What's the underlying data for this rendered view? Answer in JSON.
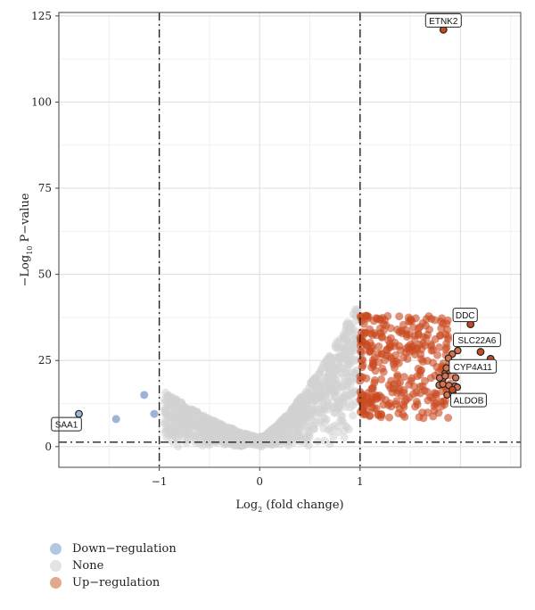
{
  "chart_data": {
    "type": "scatter",
    "title": "",
    "xlabel": "Log2 (fold change)",
    "xlabel_parts": {
      "base": "Log",
      "sub": "2",
      "rest": " (fold change)"
    },
    "ylabel": "−Log10 P−value",
    "ylabel_parts": {
      "base": "−Log",
      "sub": "10",
      "rest": " P−value"
    },
    "xlim": [
      -2.0,
      2.6
    ],
    "ylim": [
      -6,
      126
    ],
    "xticks": [
      {
        "value": -1,
        "label": "−1"
      },
      {
        "value": 0,
        "label": "0"
      },
      {
        "value": 1,
        "label": "1"
      }
    ],
    "yticks": [
      {
        "value": 0,
        "label": "0"
      },
      {
        "value": 25,
        "label": "25"
      },
      {
        "value": 50,
        "label": "50"
      },
      {
        "value": 75,
        "label": "75"
      },
      {
        "value": 100,
        "label": "100"
      },
      {
        "value": 125,
        "label": "125"
      }
    ],
    "grid": true,
    "thresholds": {
      "x": [
        -1,
        1
      ],
      "y": 1.3
    },
    "legend_placement": "bottom-left",
    "series": [
      {
        "name": "Down−regulation",
        "color": "#9db3d9",
        "points": [
          {
            "x": -1.15,
            "y": 15
          },
          {
            "x": -1.05,
            "y": 9.5
          },
          {
            "x": -1.43,
            "y": 8
          }
        ]
      },
      {
        "name": "None",
        "color": "#d2d2d2",
        "region": {
          "x": [
            -0.95,
            0.99
          ],
          "y_max": 42
        }
      },
      {
        "name": "Up−regulation",
        "color": "#c9491f",
        "region": {
          "x": [
            1.0,
            1.9
          ],
          "y": [
            8,
            38
          ]
        }
      }
    ],
    "labeled_genes": [
      {
        "name": "ETNK2",
        "x": 1.83,
        "y": 121,
        "color": "#c9491f"
      },
      {
        "name": "DDC",
        "x": 2.1,
        "y": 35.5,
        "color": "#c9491f"
      },
      {
        "name": "SLC22A6",
        "x": 2.2,
        "y": 27.5,
        "color": "#c9491f"
      },
      {
        "name": "CYP4A11",
        "x": 2.3,
        "y": 25.5,
        "color": "#c9491f"
      },
      {
        "name": "ALDOB",
        "x": 1.92,
        "y": 16.5,
        "color": "#c9491f"
      },
      {
        "name": "SAA1",
        "x": -1.8,
        "y": 9.5,
        "color": "#9db3d9"
      }
    ]
  }
}
